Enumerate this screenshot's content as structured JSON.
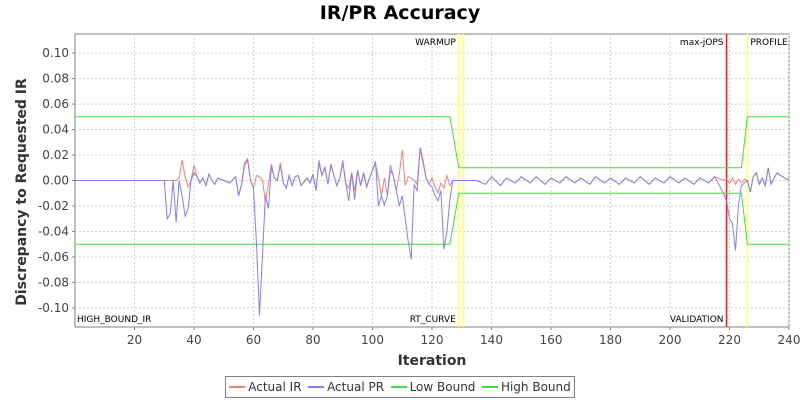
{
  "chart_data": {
    "type": "line",
    "title": "IR/PR Accuracy",
    "xlabel": "Iteration",
    "ylabel": "Discrepancy to Requested IR",
    "xlim": [
      0,
      240
    ],
    "ylim": [
      -0.115,
      0.115
    ],
    "x_ticks": [
      20,
      40,
      60,
      80,
      100,
      120,
      140,
      160,
      180,
      200,
      220,
      240
    ],
    "y_ticks": [
      -0.1,
      -0.08,
      -0.06,
      -0.04,
      -0.02,
      0.0,
      0.02,
      0.04,
      0.06,
      0.08,
      0.1
    ],
    "y_tick_labels": [
      "-0.10",
      "-0.08",
      "-0.06",
      "-0.04",
      "-0.02",
      "0.00",
      "0.02",
      "0.04",
      "0.06",
      "0.08",
      "0.10"
    ],
    "grid": true,
    "legend_position": "bottom",
    "series": [
      {
        "name": "Actual IR",
        "color": "#f08080",
        "x": [
          0,
          30,
          31,
          32,
          33,
          34,
          35,
          36,
          37,
          38,
          39,
          40,
          41,
          42,
          43,
          44,
          45,
          46,
          47,
          48,
          50,
          52,
          54,
          55,
          56,
          57,
          58,
          59,
          60,
          61,
          62,
          63,
          64,
          65,
          66,
          67,
          68,
          69,
          70,
          71,
          72,
          73,
          74,
          75,
          76,
          78,
          79,
          80,
          81,
          82,
          83,
          84,
          85,
          86,
          87,
          88,
          89,
          90,
          91,
          92,
          93,
          94,
          95,
          96,
          97,
          98,
          99,
          100,
          101,
          102,
          103,
          104,
          105,
          106,
          107,
          108,
          109,
          110,
          111,
          112,
          113,
          114,
          115,
          116,
          117,
          118,
          119,
          120,
          121,
          122,
          123,
          124,
          125,
          126,
          127,
          128,
          129,
          130,
          132,
          135,
          138,
          140,
          143,
          145,
          148,
          150,
          153,
          155,
          158,
          160,
          163,
          165,
          168,
          170,
          173,
          175,
          178,
          180,
          183,
          185,
          188,
          190,
          193,
          195,
          198,
          200,
          203,
          205,
          208,
          210,
          213,
          215,
          218,
          219,
          220,
          221,
          222,
          223,
          224,
          225,
          226,
          227,
          228,
          229,
          230,
          231,
          232,
          233,
          234,
          235,
          236,
          237,
          238,
          239,
          240
        ],
        "y": [
          0,
          0,
          0,
          0,
          0,
          0,
          0.002,
          0.016,
          0.003,
          -0.005,
          0,
          0.012,
          0.003,
          -0.002,
          0.002,
          -0.004,
          0.005,
          0,
          -0.003,
          0.002,
          0,
          -0.002,
          0.003,
          -0.012,
          -0.003,
          0.014,
          0.017,
          0,
          -0.006,
          0.004,
          0.003,
          0,
          -0.016,
          -0.003,
          0.013,
          0.002,
          0,
          0.014,
          -0.002,
          -0.006,
          0.004,
          -0.004,
          0.003,
          0.004,
          -0.004,
          0.002,
          -0.002,
          0.005,
          -0.008,
          0.016,
          0.004,
          0.011,
          -0.003,
          0.013,
          0.004,
          -0.004,
          0.002,
          0.016,
          -0.002,
          -0.006,
          0.006,
          -0.008,
          0.008,
          -0.004,
          0.006,
          -0.005,
          0.002,
          0.008,
          0.013,
          0.002,
          -0.012,
          0.002,
          -0.012,
          0.012,
          0.004,
          -0.008,
          0.005,
          0.024,
          -0.004,
          0.003,
          0.002,
          0,
          -0.003,
          0.026,
          0.016,
          0.002,
          -0.003,
          0.002,
          -0.005,
          -0.01,
          -0.002,
          -0.006,
          0.004,
          -0.004,
          0,
          0,
          0,
          0,
          0,
          0,
          -0.003,
          0.003,
          -0.004,
          0.002,
          -0.002,
          0.003,
          -0.002,
          0.003,
          -0.003,
          0.002,
          -0.002,
          0.003,
          -0.002,
          0.002,
          -0.003,
          0.003,
          -0.002,
          0.002,
          -0.003,
          0.002,
          -0.002,
          0.003,
          -0.003,
          0.002,
          -0.002,
          0.003,
          -0.002,
          0.002,
          -0.003,
          0.002,
          -0.002,
          0.003,
          0,
          0.001,
          -0.002,
          0.002,
          -0.003,
          0.001,
          -0.002,
          0.001,
          0,
          -0.009,
          0.003,
          0.006,
          -0.003,
          0.002,
          -0.004,
          0.01,
          -0.003,
          0.002,
          0.006,
          0.004,
          0.003,
          0.001,
          0.001
        ]
      },
      {
        "name": "Actual PR",
        "color": "#8080f0",
        "x": [
          0,
          30,
          31,
          32,
          33,
          34,
          35,
          36,
          37,
          38,
          39,
          40,
          41,
          42,
          43,
          44,
          45,
          46,
          47,
          48,
          50,
          52,
          54,
          55,
          56,
          57,
          58,
          59,
          60,
          61,
          62,
          63,
          64,
          65,
          66,
          67,
          68,
          69,
          70,
          71,
          72,
          73,
          74,
          75,
          76,
          78,
          79,
          80,
          81,
          82,
          83,
          84,
          85,
          86,
          87,
          88,
          89,
          90,
          91,
          92,
          93,
          94,
          95,
          96,
          97,
          98,
          99,
          100,
          101,
          102,
          103,
          104,
          105,
          106,
          107,
          108,
          109,
          110,
          111,
          112,
          113,
          114,
          115,
          116,
          117,
          118,
          119,
          120,
          121,
          122,
          123,
          124,
          125,
          126,
          127,
          128,
          129,
          130,
          132,
          135,
          138,
          140,
          143,
          145,
          148,
          150,
          153,
          155,
          158,
          160,
          163,
          165,
          168,
          170,
          173,
          175,
          178,
          180,
          183,
          185,
          188,
          190,
          193,
          195,
          198,
          200,
          203,
          205,
          208,
          210,
          213,
          215,
          218,
          219,
          220,
          221,
          222,
          223,
          224,
          225,
          226,
          227,
          228,
          229,
          230,
          231,
          232,
          233,
          234,
          235,
          236,
          237,
          238,
          239,
          240
        ],
        "y": [
          0,
          0,
          -0.03,
          -0.026,
          0,
          -0.033,
          0,
          -0.012,
          -0.028,
          -0.022,
          0,
          0.006,
          0.003,
          -0.002,
          0.002,
          -0.004,
          0.005,
          0,
          -0.003,
          0.002,
          0,
          -0.002,
          0.003,
          -0.012,
          -0.003,
          0.012,
          0.016,
          0,
          -0.006,
          -0.05,
          -0.106,
          -0.06,
          -0.012,
          -0.022,
          0.011,
          0.002,
          0,
          0.012,
          -0.002,
          -0.006,
          0.004,
          -0.004,
          0.003,
          0.004,
          -0.004,
          0.002,
          -0.002,
          0.005,
          -0.008,
          0.014,
          0.004,
          0.01,
          -0.003,
          0.012,
          0.004,
          -0.004,
          0.002,
          0.014,
          -0.002,
          -0.016,
          0.006,
          -0.015,
          0.008,
          -0.004,
          0.006,
          -0.005,
          0.002,
          0.008,
          0.015,
          -0.02,
          -0.012,
          -0.019,
          -0.012,
          0.008,
          0.004,
          -0.008,
          -0.02,
          -0.012,
          -0.03,
          -0.048,
          -0.062,
          -0.003,
          -0.008,
          0.025,
          0.014,
          0.002,
          -0.003,
          -0.005,
          -0.012,
          -0.016,
          -0.008,
          -0.054,
          -0.04,
          -0.015,
          0,
          0,
          0,
          0,
          0,
          0,
          -0.003,
          0.003,
          -0.004,
          0.002,
          -0.002,
          0.003,
          -0.002,
          0.003,
          -0.003,
          0.002,
          -0.002,
          0.003,
          -0.002,
          0.002,
          -0.003,
          0.003,
          -0.002,
          0.002,
          -0.003,
          0.002,
          -0.002,
          0.003,
          -0.003,
          0.002,
          -0.002,
          0.003,
          -0.002,
          0.002,
          -0.003,
          0.002,
          -0.002,
          0.003,
          -0.01,
          -0.016,
          -0.03,
          -0.034,
          -0.055,
          -0.02,
          -0.004,
          -0.002,
          0,
          -0.009,
          0.003,
          0.006,
          -0.003,
          0.002,
          -0.004,
          0.01,
          -0.003,
          0.002,
          0.006,
          0.004,
          0.003,
          0.001,
          0.001
        ]
      },
      {
        "name": "Low Bound",
        "color": "#40e040",
        "x": [
          0,
          126,
          129,
          130,
          224,
          226,
          228,
          240
        ],
        "y": [
          -0.05,
          -0.05,
          -0.01,
          -0.01,
          -0.01,
          -0.05,
          -0.05,
          -0.05
        ]
      },
      {
        "name": "High Bound",
        "color": "#40e040",
        "x": [
          0,
          126,
          129,
          130,
          224,
          226,
          228,
          240
        ],
        "y": [
          0.05,
          0.05,
          0.01,
          0.01,
          0.01,
          0.05,
          0.05,
          0.05
        ]
      }
    ],
    "markers": [
      {
        "x": 129,
        "color": "#ffff80",
        "top_label": "WARMUP",
        "bottom_label": "RT_CURVE"
      },
      {
        "x": 130.5,
        "color": "#ffff80",
        "top_label": "",
        "bottom_label": ""
      },
      {
        "x": 219,
        "color": "#e02020",
        "top_label": "max-jOPS",
        "bottom_label": "VALIDATION"
      },
      {
        "x": 226,
        "color": "#ffff80",
        "top_label": "PROFILE",
        "bottom_label": ""
      }
    ],
    "corner_labels": {
      "bottom_left": "HIGH_BOUND_IR"
    }
  }
}
